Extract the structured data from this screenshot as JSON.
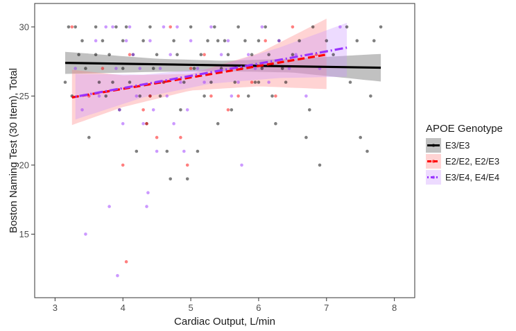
{
  "chart_data": {
    "type": "scatter",
    "xlabel": "Cardiac Output, L/min",
    "ylabel": "Boston Naming Test (30 Item), Total",
    "xlim": [
      2.7,
      8.3
    ],
    "ylim": [
      10.4,
      31.7
    ],
    "x_ticks": [
      "3",
      "4",
      "5",
      "6",
      "7",
      "8"
    ],
    "y_ticks": [
      "15",
      "20",
      "25",
      "30"
    ],
    "x_tick_values": [
      3,
      4,
      5,
      6,
      7,
      8
    ],
    "y_tick_values": [
      15,
      20,
      25,
      30
    ],
    "grid": false,
    "legend": {
      "title": "APOE Genotype",
      "placement": "right",
      "entries": [
        "E3/E3",
        "E2/E2, E2/E3",
        "E3/E4, E4/E4"
      ]
    },
    "series": [
      {
        "name": "E3/E3",
        "color": "#000000",
        "fill": "#4d4d4d",
        "line_style": "solid",
        "fit": {
          "x": [
            3.15,
            7.8
          ],
          "y": [
            27.4,
            27.05
          ]
        },
        "band": {
          "x": [
            3.15,
            4.5,
            5.5,
            6.5,
            7.8
          ],
          "lower": [
            26.6,
            26.75,
            26.8,
            26.7,
            26.05
          ],
          "upper": [
            28.2,
            27.7,
            27.55,
            27.7,
            28.05
          ]
        },
        "points": [
          [
            3.15,
            26
          ],
          [
            3.2,
            30
          ],
          [
            3.3,
            30
          ],
          [
            3.35,
            28
          ],
          [
            3.4,
            29
          ],
          [
            3.45,
            27
          ],
          [
            3.5,
            22
          ],
          [
            3.6,
            28
          ],
          [
            3.6,
            30
          ],
          [
            3.65,
            26
          ],
          [
            3.7,
            29
          ],
          [
            3.75,
            25
          ],
          [
            3.8,
            28
          ],
          [
            3.85,
            26
          ],
          [
            3.9,
            30
          ],
          [
            3.95,
            24
          ],
          [
            4.0,
            27
          ],
          [
            4.0,
            29
          ],
          [
            4.05,
            30
          ],
          [
            4.1,
            26
          ],
          [
            4.15,
            28
          ],
          [
            4.2,
            21
          ],
          [
            4.25,
            25
          ],
          [
            4.3,
            29
          ],
          [
            4.35,
            23
          ],
          [
            4.4,
            30
          ],
          [
            4.45,
            27
          ],
          [
            4.5,
            28
          ],
          [
            4.55,
            25
          ],
          [
            4.6,
            26
          ],
          [
            4.65,
            21
          ],
          [
            4.7,
            19
          ],
          [
            4.75,
            29
          ],
          [
            4.8,
            28
          ],
          [
            4.85,
            24
          ],
          [
            4.9,
            26
          ],
          [
            4.95,
            19
          ],
          [
            5.0,
            30
          ],
          [
            5.05,
            27
          ],
          [
            5.1,
            21
          ],
          [
            5.15,
            28
          ],
          [
            5.2,
            25
          ],
          [
            5.25,
            29
          ],
          [
            5.3,
            26
          ],
          [
            5.35,
            30
          ],
          [
            5.4,
            23
          ],
          [
            5.45,
            27
          ],
          [
            5.5,
            29
          ],
          [
            5.55,
            28
          ],
          [
            5.6,
            24
          ],
          [
            5.65,
            26
          ],
          [
            5.7,
            30
          ],
          [
            5.75,
            27
          ],
          [
            5.8,
            29
          ],
          [
            5.85,
            25
          ],
          [
            5.9,
            28
          ],
          [
            5.95,
            26
          ],
          [
            6.0,
            29
          ],
          [
            6.05,
            27
          ],
          [
            6.1,
            30
          ],
          [
            6.15,
            28
          ],
          [
            6.2,
            25
          ],
          [
            6.25,
            23
          ],
          [
            6.3,
            29
          ],
          [
            6.35,
            27
          ],
          [
            6.4,
            26
          ],
          [
            6.5,
            28
          ],
          [
            6.6,
            29
          ],
          [
            6.7,
            22
          ],
          [
            6.75,
            24
          ],
          [
            6.8,
            30
          ],
          [
            6.9,
            20
          ],
          [
            7.0,
            29
          ],
          [
            7.1,
            28
          ],
          [
            7.3,
            30
          ],
          [
            7.35,
            26
          ],
          [
            7.45,
            29
          ],
          [
            7.5,
            22
          ],
          [
            7.6,
            21
          ],
          [
            7.65,
            25
          ],
          [
            7.7,
            29
          ],
          [
            7.8,
            30
          ],
          [
            3.25,
            25
          ],
          [
            4.4,
            25
          ],
          [
            5.4,
            29
          ],
          [
            6.0,
            26
          ]
        ]
      },
      {
        "name": "E2/E2, E2/E3",
        "color": "#ff0000",
        "fill": "#ff8080",
        "line_style": "dashed",
        "fit": {
          "x": [
            3.25,
            7.0
          ],
          "y": [
            24.9,
            28.0
          ]
        },
        "band": {
          "x": [
            3.25,
            4.0,
            5.0,
            6.0,
            7.0
          ],
          "lower": [
            22.9,
            24.2,
            25.4,
            25.7,
            25.5
          ],
          "upper": [
            26.9,
            26.5,
            26.6,
            28.1,
            30.6
          ]
        },
        "points": [
          [
            3.25,
            30
          ],
          [
            3.5,
            25
          ],
          [
            3.7,
            27
          ],
          [
            4.0,
            20
          ],
          [
            4.05,
            13
          ],
          [
            4.1,
            28
          ],
          [
            4.3,
            24
          ],
          [
            4.35,
            23
          ],
          [
            4.4,
            25
          ],
          [
            4.5,
            22
          ],
          [
            4.6,
            26
          ],
          [
            4.7,
            30
          ],
          [
            4.85,
            22
          ],
          [
            4.95,
            20
          ],
          [
            5.0,
            27
          ],
          [
            5.2,
            28
          ],
          [
            5.3,
            25
          ],
          [
            5.55,
            24
          ],
          [
            5.7,
            25
          ],
          [
            5.9,
            26
          ],
          [
            6.1,
            29
          ],
          [
            6.25,
            25
          ],
          [
            6.5,
            30
          ],
          [
            6.85,
            28
          ]
        ]
      },
      {
        "name": "E3/E4, E4/E4",
        "color": "#9933ff",
        "fill": "#cc99ff",
        "line_style": "dotdash",
        "fit": {
          "x": [
            3.3,
            7.3
          ],
          "y": [
            24.95,
            28.5
          ]
        },
        "band": {
          "x": [
            3.3,
            4.3,
            5.3,
            6.3,
            7.3
          ],
          "lower": [
            23.3,
            24.9,
            25.9,
            26.3,
            26.4
          ],
          "upper": [
            26.6,
            26.55,
            27.0,
            28.5,
            30.3
          ]
        },
        "points": [
          [
            3.3,
            27
          ],
          [
            3.4,
            24
          ],
          [
            3.45,
            15
          ],
          [
            3.6,
            29
          ],
          [
            3.65,
            25
          ],
          [
            3.75,
            30
          ],
          [
            3.8,
            17
          ],
          [
            3.85,
            30
          ],
          [
            3.9,
            27
          ],
          [
            3.92,
            12
          ],
          [
            3.95,
            24
          ],
          [
            4.0,
            23
          ],
          [
            4.05,
            29
          ],
          [
            4.1,
            30
          ],
          [
            4.15,
            28
          ],
          [
            4.2,
            25
          ],
          [
            4.25,
            27
          ],
          [
            4.3,
            23
          ],
          [
            4.35,
            17
          ],
          [
            4.37,
            18
          ],
          [
            4.4,
            29
          ],
          [
            4.45,
            24
          ],
          [
            4.5,
            21
          ],
          [
            4.55,
            27
          ],
          [
            4.6,
            30
          ],
          [
            4.65,
            25
          ],
          [
            4.7,
            28
          ],
          [
            4.75,
            23
          ],
          [
            4.8,
            30
          ],
          [
            4.85,
            26
          ],
          [
            4.9,
            21
          ],
          [
            4.95,
            24
          ],
          [
            5.0,
            29
          ],
          [
            5.1,
            27
          ],
          [
            5.2,
            26
          ],
          [
            5.3,
            30
          ],
          [
            5.45,
            28
          ],
          [
            5.55,
            29
          ],
          [
            5.6,
            25
          ],
          [
            5.7,
            26
          ],
          [
            5.75,
            20
          ],
          [
            5.85,
            28
          ],
          [
            5.95,
            27
          ],
          [
            6.05,
            30
          ],
          [
            6.15,
            26
          ],
          [
            6.3,
            29
          ],
          [
            6.45,
            27
          ],
          [
            6.55,
            28
          ],
          [
            6.7,
            25
          ],
          [
            6.9,
            27
          ],
          [
            7.2,
            30
          ]
        ]
      }
    ]
  }
}
